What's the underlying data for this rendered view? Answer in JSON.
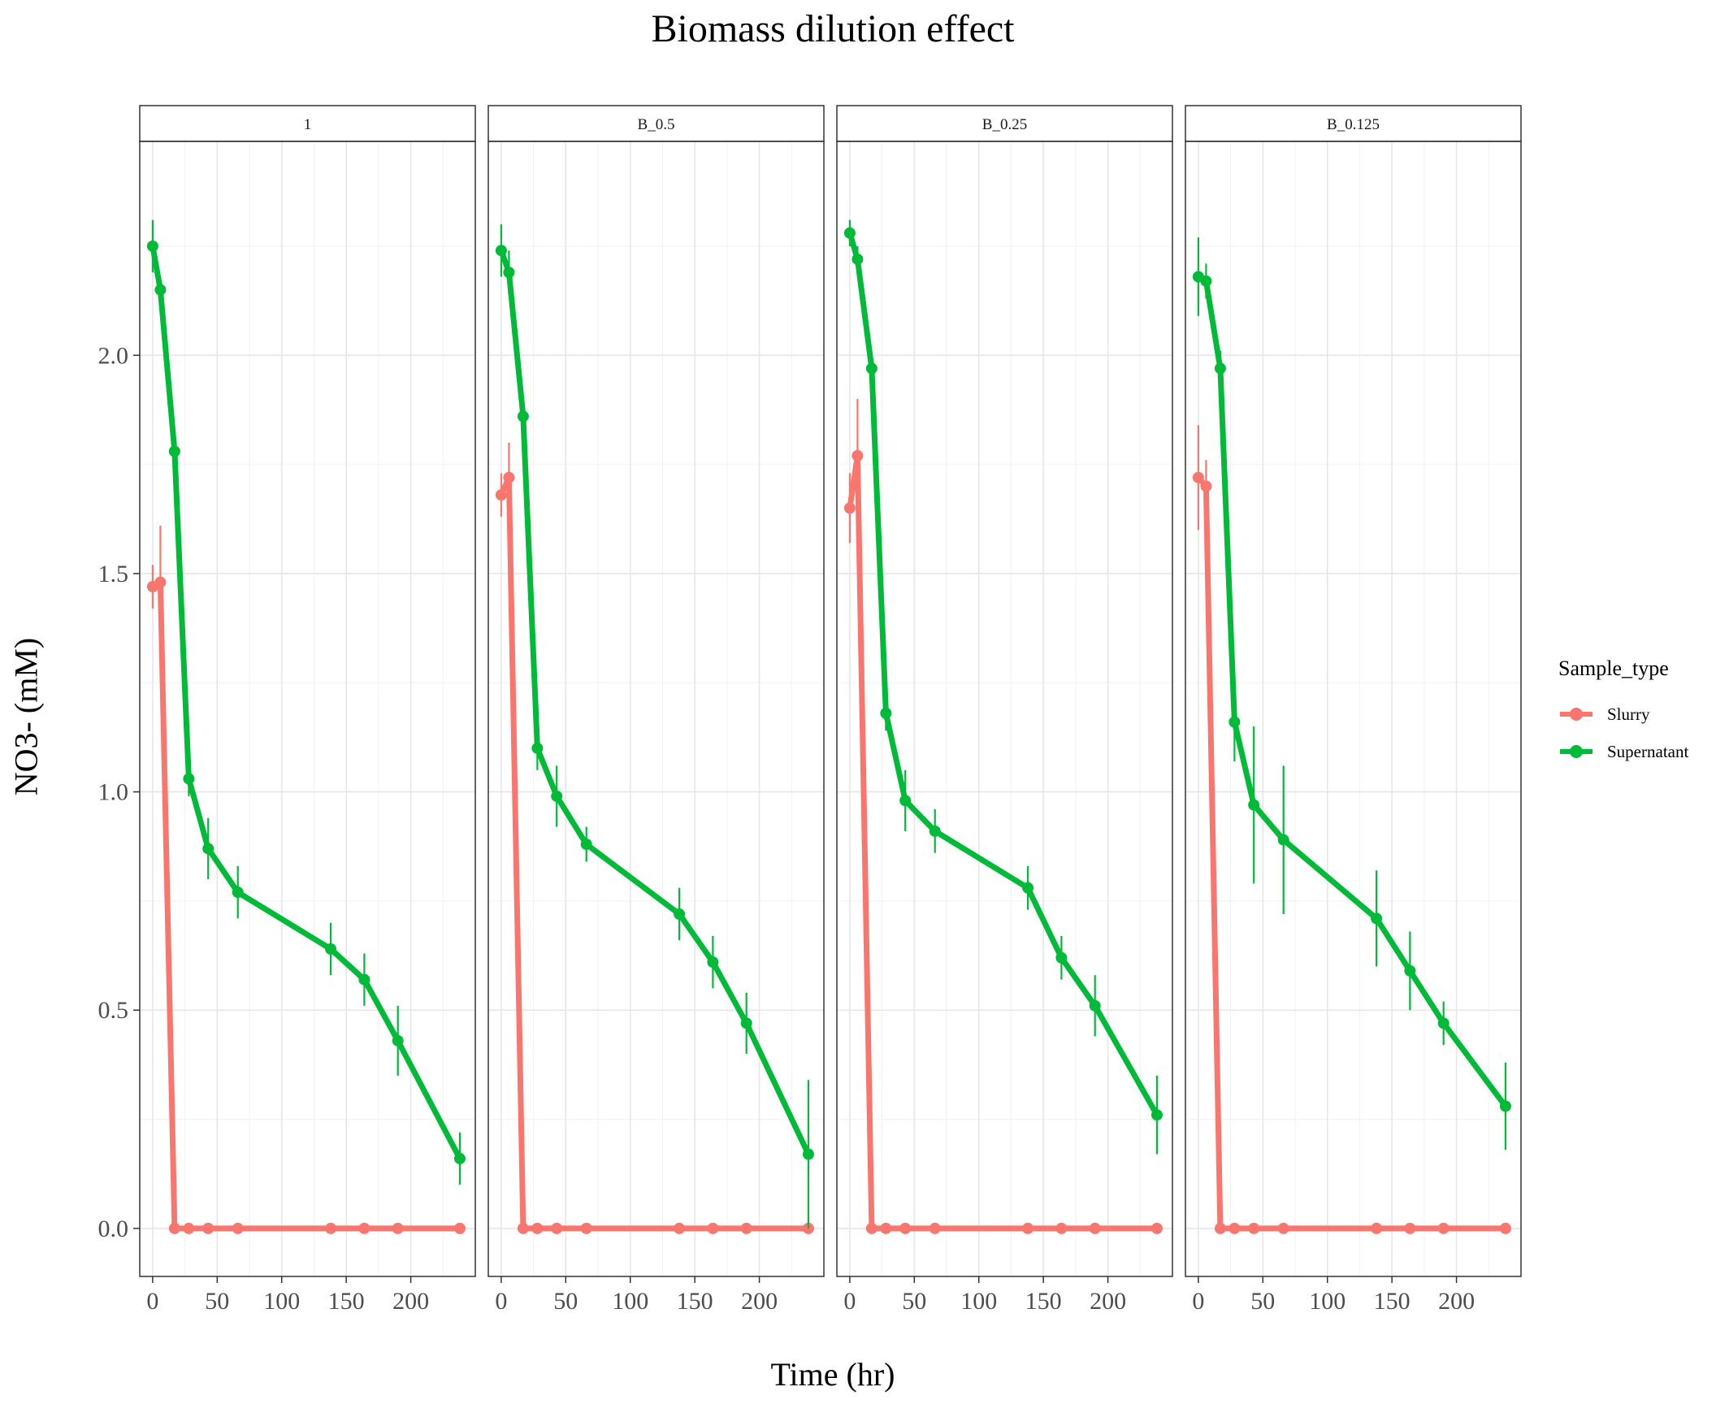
{
  "chart_data": {
    "type": "line",
    "title": "Biomass dilution effect",
    "xlabel": "Time (hr)",
    "ylabel": "NO3- (mM)",
    "xlim": [
      -10,
      250
    ],
    "ylim": [
      -0.11,
      2.49
    ],
    "x_ticks": [
      0,
      50,
      100,
      150,
      200
    ],
    "y_ticks": [
      0.0,
      0.5,
      1.0,
      1.5,
      2.0
    ],
    "y_tick_labels": [
      "0.0",
      "0.5",
      "1.0",
      "1.5",
      "2.0"
    ],
    "grid": true,
    "legend": {
      "title": "Sample_type",
      "position": "right",
      "entries": [
        {
          "label": "Slurry",
          "color": "#F8766D"
        },
        {
          "label": "Supernatant",
          "color": "#00BA38"
        }
      ]
    },
    "panels": [
      {
        "label": "1",
        "series": [
          {
            "name": "Slurry",
            "color": "#F8766D",
            "x": [
              0,
              6,
              17,
              28,
              43,
              66,
              138,
              164,
              190,
              238
            ],
            "y": [
              1.47,
              1.48,
              0.0,
              0.0,
              0.0,
              0.0,
              0.0,
              0.0,
              0.0,
              0.0
            ],
            "err": [
              0.05,
              0.13,
              0,
              0,
              0,
              0,
              0,
              0,
              0,
              0
            ]
          },
          {
            "name": "Supernatant",
            "color": "#00BA38",
            "x": [
              0,
              6,
              17,
              28,
              43,
              66,
              138,
              164,
              190,
              238
            ],
            "y": [
              2.25,
              2.15,
              1.78,
              1.03,
              0.87,
              0.77,
              0.64,
              0.57,
              0.43,
              0.16
            ],
            "err": [
              0.06,
              0.03,
              0.03,
              0.04,
              0.07,
              0.06,
              0.06,
              0.06,
              0.08,
              0.06
            ]
          }
        ]
      },
      {
        "label": "B_0.5",
        "series": [
          {
            "name": "Slurry",
            "color": "#F8766D",
            "x": [
              0,
              6,
              17,
              28,
              43,
              66,
              138,
              164,
              190,
              238
            ],
            "y": [
              1.68,
              1.72,
              0.0,
              0.0,
              0.0,
              0.0,
              0.0,
              0.0,
              0.0,
              0.0
            ],
            "err": [
              0.05,
              0.08,
              0,
              0,
              0,
              0,
              0,
              0,
              0,
              0
            ]
          },
          {
            "name": "Supernatant",
            "color": "#00BA38",
            "x": [
              0,
              6,
              17,
              28,
              43,
              66,
              138,
              164,
              190,
              238
            ],
            "y": [
              2.24,
              2.19,
              1.86,
              1.1,
              0.99,
              0.88,
              0.72,
              0.61,
              0.47,
              0.17
            ],
            "err": [
              0.06,
              0.05,
              0.04,
              0.05,
              0.07,
              0.04,
              0.06,
              0.06,
              0.07,
              0.17
            ]
          }
        ]
      },
      {
        "label": "B_0.25",
        "series": [
          {
            "name": "Slurry",
            "color": "#F8766D",
            "x": [
              0,
              6,
              17,
              28,
              43,
              66,
              138,
              164,
              190,
              238
            ],
            "y": [
              1.65,
              1.77,
              0.0,
              0.0,
              0.0,
              0.0,
              0.0,
              0.0,
              0.0,
              0.0
            ],
            "err": [
              0.08,
              0.13,
              0,
              0,
              0,
              0,
              0,
              0,
              0,
              0
            ]
          },
          {
            "name": "Supernatant",
            "color": "#00BA38",
            "x": [
              0,
              6,
              17,
              28,
              43,
              66,
              138,
              164,
              190,
              238
            ],
            "y": [
              2.28,
              2.22,
              1.97,
              1.18,
              0.98,
              0.91,
              0.78,
              0.62,
              0.51,
              0.26
            ],
            "err": [
              0.03,
              0.03,
              0.03,
              0.04,
              0.07,
              0.05,
              0.05,
              0.05,
              0.07,
              0.09
            ]
          }
        ]
      },
      {
        "label": "B_0.125",
        "series": [
          {
            "name": "Slurry",
            "color": "#F8766D",
            "x": [
              0,
              6,
              17,
              28,
              43,
              66,
              138,
              164,
              190,
              238
            ],
            "y": [
              1.72,
              1.7,
              0.0,
              0.0,
              0.0,
              0.0,
              0.0,
              0.0,
              0.0,
              0.0
            ],
            "err": [
              0.12,
              0.06,
              0,
              0,
              0,
              0,
              0,
              0,
              0,
              0
            ]
          },
          {
            "name": "Supernatant",
            "color": "#00BA38",
            "x": [
              0,
              6,
              17,
              28,
              43,
              66,
              138,
              164,
              190,
              238
            ],
            "y": [
              2.18,
              2.17,
              1.97,
              1.16,
              0.97,
              0.89,
              0.71,
              0.59,
              0.47,
              0.28
            ],
            "err": [
              0.09,
              0.04,
              0.04,
              0.09,
              0.18,
              0.17,
              0.11,
              0.09,
              0.05,
              0.1
            ]
          }
        ]
      }
    ]
  }
}
